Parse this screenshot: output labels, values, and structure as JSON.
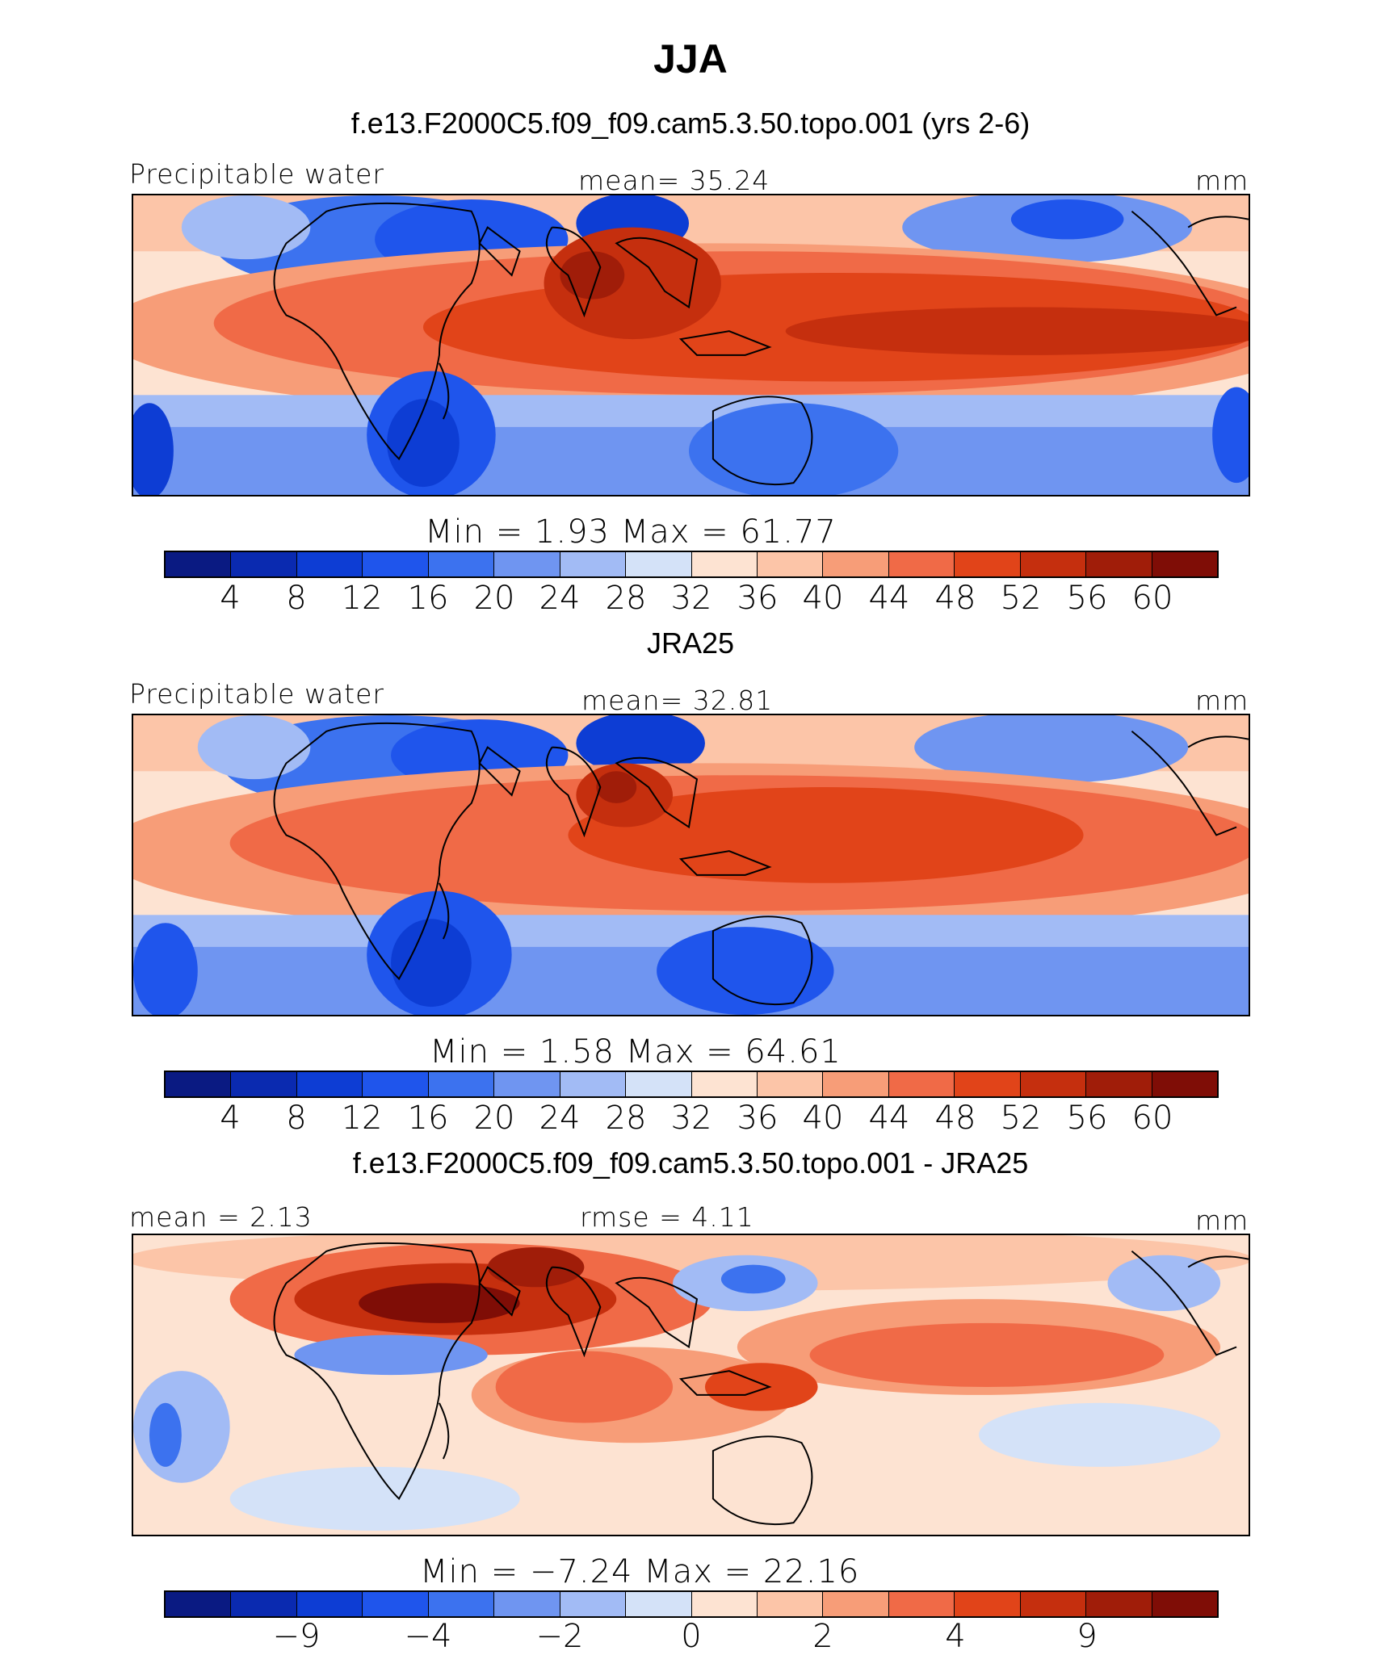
{
  "title": "JJA",
  "colors": {
    "ramp": [
      "#0a1a82",
      "#0a2ab0",
      "#0d3dd4",
      "#1f55ec",
      "#3c72ef",
      "#6f95f1",
      "#a2bbf5",
      "#d4e2f8",
      "#fde3d2",
      "#fcc5a8",
      "#f79d78",
      "#f06a47",
      "#e14419",
      "#c52f0e",
      "#a01d09",
      "#7f0d06"
    ]
  },
  "panels": [
    {
      "id": "model",
      "title": "f.e13.F2000C5.f09_f09.cam5.3.50.topo.001 (yrs 2-6)",
      "left_label": "Precipitable water",
      "center_label": "mean=  35.24",
      "units": "mm",
      "minmax": "Min  =     1.93  Max  =    61.77",
      "ticks": [
        "4",
        "8",
        "12",
        "16",
        "20",
        "24",
        "28",
        "32",
        "36",
        "40",
        "44",
        "48",
        "52",
        "56",
        "60"
      ]
    },
    {
      "id": "obs",
      "title": "JRA25",
      "left_label": "Precipitable water",
      "center_label": "mean=  32.81",
      "units": "mm",
      "minmax": "Min  =     1.58  Max  =    64.61",
      "ticks": [
        "4",
        "8",
        "12",
        "16",
        "20",
        "24",
        "28",
        "32",
        "36",
        "40",
        "44",
        "48",
        "52",
        "56",
        "60"
      ]
    },
    {
      "id": "diff",
      "title": "f.e13.F2000C5.f09_f09.cam5.3.50.topo.001 - JRA25",
      "left_label": "mean  =    2.13",
      "center_label": "rmse  =    4.11",
      "units": "mm",
      "minmax": "Min  =   −7.24  Max  =    22.16",
      "ticks": [
        "−9",
        "−4",
        "−2",
        "0",
        "2",
        "4",
        "9"
      ]
    }
  ]
}
